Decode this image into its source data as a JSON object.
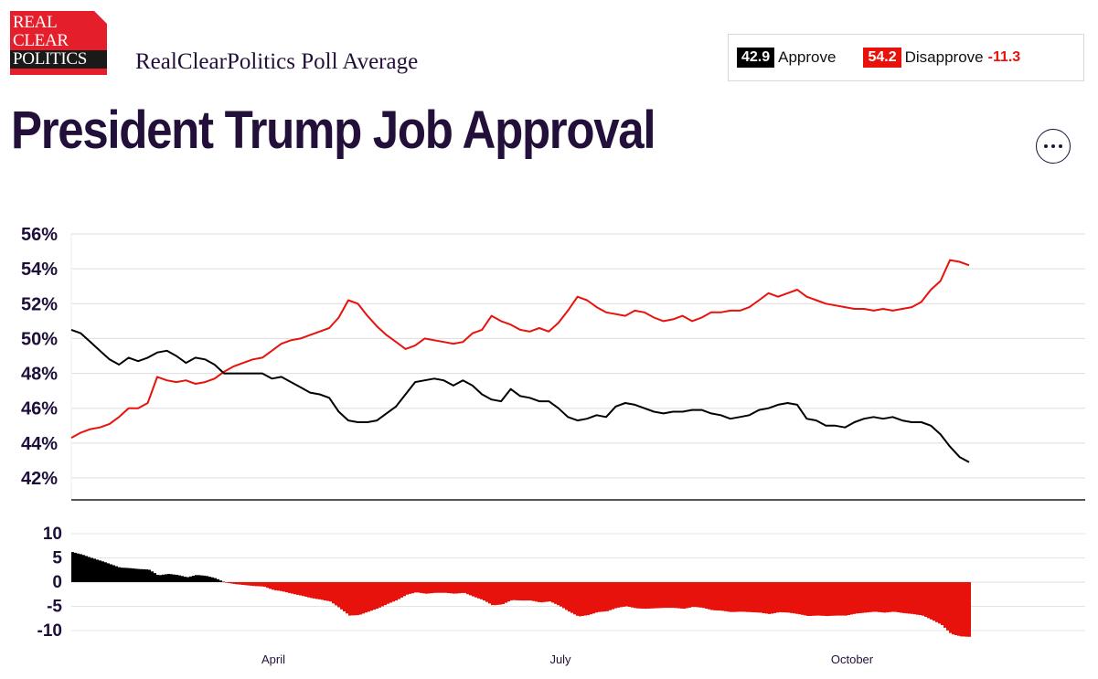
{
  "header": {
    "logo_lines": [
      "REAL",
      "CLEAR",
      "POLITICS"
    ],
    "subtitle": "RealClearPolitics Poll Average",
    "title": "President Trump Job Approval"
  },
  "summary": {
    "approve_value": "42.9",
    "approve_label": "Approve",
    "disapprove_value": "54.2",
    "disapprove_label": "Disapprove",
    "spread": "-11.3"
  },
  "menu": {
    "icon": "ellipsis-icon"
  },
  "colors": {
    "approve": "#000000",
    "disapprove": "#e8120c",
    "text": "#23103a",
    "grid": "#dddddd"
  },
  "chart_data": [
    {
      "type": "line",
      "x_ticks": [
        "April",
        "July",
        "October"
      ],
      "ylim": [
        42,
        56
      ],
      "y_ticks": [
        "56%",
        "54%",
        "52%",
        "50%",
        "48%",
        "46%",
        "44%",
        "42%"
      ],
      "grid": true,
      "series": [
        {
          "name": "Approve",
          "color": "#000000",
          "values": [
            50.5,
            50.3,
            49.8,
            49.3,
            48.8,
            48.5,
            48.9,
            48.7,
            48.9,
            49.2,
            49.3,
            49.0,
            48.6,
            48.9,
            48.8,
            48.5,
            48.0,
            48.0,
            48.0,
            48.0,
            48.0,
            47.7,
            47.8,
            47.5,
            47.2,
            46.9,
            46.8,
            46.6,
            45.8,
            45.3,
            45.2,
            45.2,
            45.3,
            45.7,
            46.1,
            46.8,
            47.5,
            47.6,
            47.7,
            47.6,
            47.3,
            47.6,
            47.3,
            46.8,
            46.5,
            46.4,
            47.1,
            46.7,
            46.6,
            46.4,
            46.4,
            46.0,
            45.5,
            45.3,
            45.4,
            45.6,
            45.5,
            46.1,
            46.3,
            46.2,
            46.0,
            45.8,
            45.7,
            45.8,
            45.8,
            45.9,
            45.9,
            45.7,
            45.6,
            45.4,
            45.5,
            45.6,
            45.9,
            46.0,
            46.2,
            46.3,
            46.2,
            45.4,
            45.3,
            45.0,
            45.0,
            44.9,
            45.2,
            45.4,
            45.5,
            45.4,
            45.5,
            45.3,
            45.2,
            45.2,
            45.0,
            44.5,
            43.8,
            43.2,
            42.9
          ]
        },
        {
          "name": "Disapprove",
          "color": "#e8120c",
          "values": [
            44.3,
            44.6,
            44.8,
            44.9,
            45.1,
            45.5,
            46.0,
            46.0,
            46.3,
            47.8,
            47.6,
            47.5,
            47.6,
            47.4,
            47.5,
            47.7,
            48.1,
            48.4,
            48.6,
            48.8,
            48.9,
            49.3,
            49.7,
            49.9,
            50.0,
            50.2,
            50.4,
            50.6,
            51.2,
            52.2,
            52.0,
            51.3,
            50.7,
            50.2,
            49.8,
            49.4,
            49.6,
            50.0,
            49.9,
            49.8,
            49.7,
            49.8,
            50.3,
            50.5,
            51.3,
            51.0,
            50.8,
            50.5,
            50.4,
            50.6,
            50.4,
            50.9,
            51.6,
            52.4,
            52.2,
            51.8,
            51.5,
            51.4,
            51.3,
            51.6,
            51.5,
            51.2,
            51.0,
            51.1,
            51.3,
            51.0,
            51.2,
            51.5,
            51.5,
            51.6,
            51.6,
            51.8,
            52.2,
            52.6,
            52.4,
            52.6,
            52.8,
            52.4,
            52.2,
            52.0,
            51.9,
            51.8,
            51.7,
            51.7,
            51.6,
            51.7,
            51.6,
            51.7,
            51.8,
            52.1,
            52.8,
            53.3,
            54.5,
            54.4,
            54.2
          ]
        }
      ]
    },
    {
      "type": "bar",
      "name": "Spread",
      "x_ticks": [
        "April",
        "July",
        "October"
      ],
      "ylim": [
        -11,
        11
      ],
      "y_ticks": [
        "10",
        "5",
        "0",
        "-5",
        "-10"
      ],
      "positive_color": "#000000",
      "negative_color": "#e8120c",
      "values": [
        6.2,
        5.7,
        5.0,
        4.4,
        3.7,
        3.0,
        2.9,
        2.7,
        2.6,
        1.4,
        1.7,
        1.5,
        1.0,
        1.5,
        1.3,
        0.8,
        -0.1,
        -0.4,
        -0.6,
        -0.8,
        -0.9,
        -1.6,
        -1.9,
        -2.4,
        -2.8,
        -3.3,
        -3.6,
        -4.0,
        -5.4,
        -6.9,
        -6.8,
        -6.1,
        -5.4,
        -4.5,
        -3.7,
        -2.6,
        -2.1,
        -2.4,
        -2.2,
        -2.2,
        -2.4,
        -2.2,
        -3.0,
        -3.7,
        -4.8,
        -4.6,
        -3.7,
        -3.8,
        -3.8,
        -4.2,
        -4.0,
        -4.9,
        -6.1,
        -7.1,
        -6.8,
        -6.2,
        -6.0,
        -5.3,
        -5.0,
        -5.4,
        -5.5,
        -5.4,
        -5.3,
        -5.3,
        -5.5,
        -5.1,
        -5.3,
        -5.8,
        -5.9,
        -6.2,
        -6.1,
        -6.2,
        -6.3,
        -6.6,
        -6.2,
        -6.3,
        -6.6,
        -7.0,
        -6.9,
        -7.0,
        -6.9,
        -6.9,
        -6.5,
        -6.3,
        -6.1,
        -6.3,
        -6.1,
        -6.4,
        -6.6,
        -6.9,
        -7.8,
        -8.8,
        -10.7,
        -11.2,
        -11.3
      ]
    }
  ]
}
